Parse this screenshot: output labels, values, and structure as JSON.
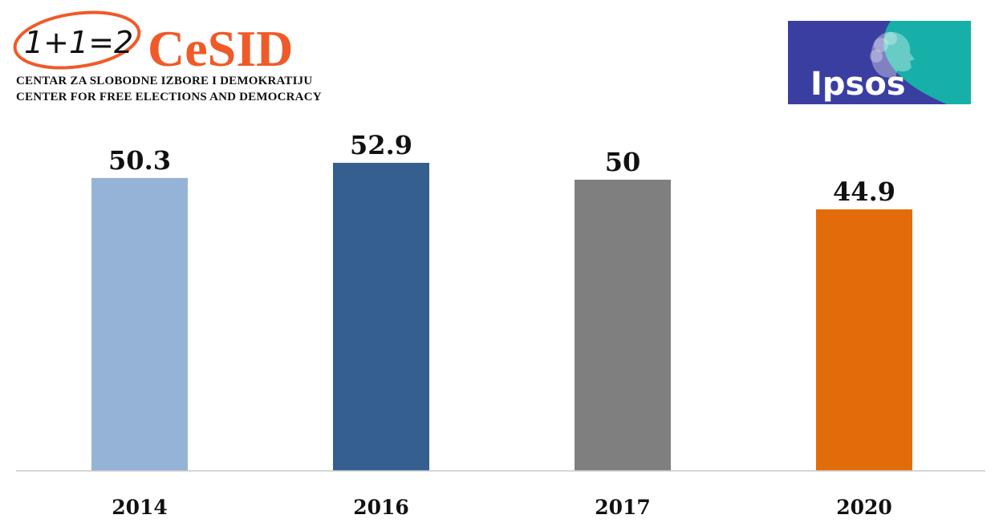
{
  "logos": {
    "cesid": {
      "equation": "1+1=2",
      "name": "CeSID",
      "line1": "CENTAR ZA SLOBODNE IZBORE I DEMOKRATIJU",
      "line2": "CENTER FOR FREE ELECTIONS AND DEMOCRACY",
      "color": "#f05a28"
    },
    "ipsos": {
      "name": "Ipsos",
      "colors": [
        "#3b3ea1",
        "#17b0a8"
      ]
    }
  },
  "chart_data": {
    "type": "bar",
    "categories": [
      "2014",
      "2016",
      "2017",
      "2020"
    ],
    "values": [
      50.3,
      52.9,
      50,
      44.9
    ],
    "value_labels": [
      "50.3",
      "52.9",
      "50",
      "44.9"
    ],
    "colors": [
      "#95b3d7",
      "#355f8f",
      "#7f7f7f",
      "#e36c0a"
    ],
    "title": "",
    "xlabel": "",
    "ylabel": "",
    "ylim": [
      0,
      52.9
    ],
    "grid": false
  }
}
